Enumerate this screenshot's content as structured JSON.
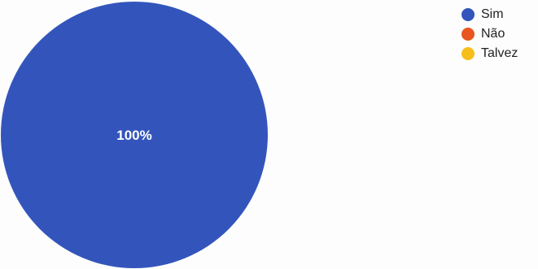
{
  "chart_data": {
    "type": "pie",
    "categories": [
      "Sim",
      "Não",
      "Talvez"
    ],
    "values": [
      100,
      0,
      0
    ],
    "data_labels": [
      "100%",
      "",
      ""
    ],
    "colors": [
      "#3355bb",
      "#e8551e",
      "#f6be19"
    ],
    "legend_position": "top-right"
  },
  "legend": {
    "items": [
      {
        "label": "Sim",
        "color": "#3355bb"
      },
      {
        "label": "Não",
        "color": "#e8551e"
      },
      {
        "label": "Talvez",
        "color": "#f6be19"
      }
    ]
  }
}
